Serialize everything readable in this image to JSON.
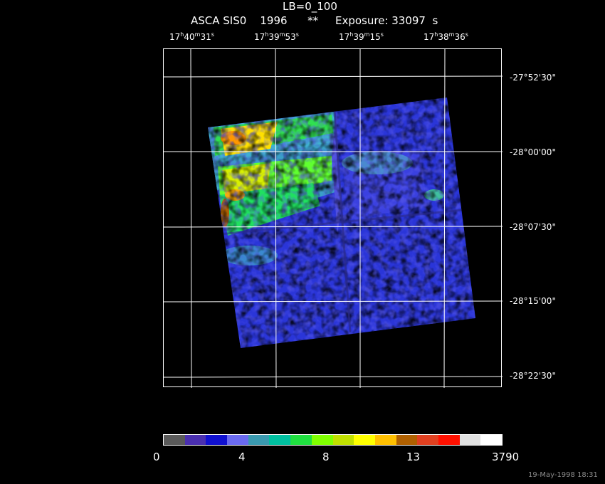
{
  "header": {
    "line1": "LB=0_100",
    "line2": "ASCA SIS0    1996      **     Exposure: 33097  s"
  },
  "ra_labels": [
    {
      "h": "17",
      "m": "40",
      "s": "31"
    },
    {
      "h": "17",
      "m": "39",
      "s": "53"
    },
    {
      "h": "17",
      "m": "39",
      "s": "15"
    },
    {
      "h": "17",
      "m": "38",
      "s": "36"
    }
  ],
  "dec_labels": [
    "-27°52'30\"",
    "-28°00'00\"",
    "-28°07'30\"",
    "-28°15'00\"",
    "-28°22'30\""
  ],
  "colorbar": {
    "colors": [
      "#5a5a5a",
      "#4a2fb0",
      "#1010d0",
      "#6a6af0",
      "#3a9ab0",
      "#00c0a0",
      "#20e040",
      "#80ff00",
      "#c0e000",
      "#ffff00",
      "#ffc000",
      "#b06000",
      "#e04020",
      "#ff1000",
      "#e0e0e0",
      "#ffffff"
    ],
    "tick_labels": [
      "0",
      "4",
      "8",
      "13",
      "3790"
    ]
  },
  "timestamp": "19-May-1998 18:31"
}
